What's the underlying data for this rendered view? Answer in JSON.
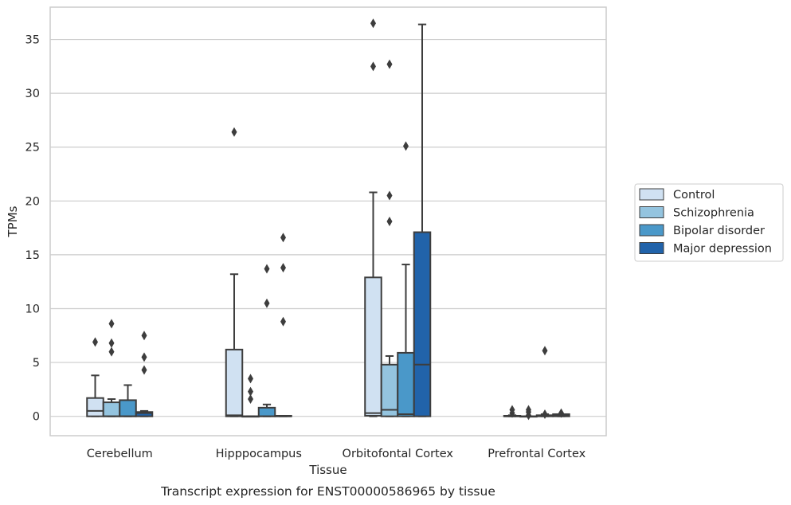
{
  "chart_data": {
    "type": "boxplot",
    "title": "",
    "caption": "Transcript expression for ENST00000586965 by tissue",
    "xlabel": "Tissue",
    "ylabel": "TPMs",
    "ylim": [
      -1.8,
      38
    ],
    "yticks": [
      0,
      5,
      10,
      15,
      20,
      25,
      30,
      35
    ],
    "grid": "horizontal",
    "legend_position": "right",
    "categories": [
      "Cerebellum",
      "Hipppocampus",
      "Orbitofontal Cortex",
      "Prefrontal Cortex"
    ],
    "series": [
      {
        "name": "Control",
        "color": "#d0e1f2",
        "boxes": [
          {
            "q1": 0,
            "median": 0.5,
            "q3": 1.7,
            "whisker_low": 0,
            "whisker_high": 3.8,
            "outliers": [
              6.9
            ]
          },
          {
            "q1": 0,
            "median": 0.1,
            "q3": 6.2,
            "whisker_low": 0,
            "whisker_high": 13.2,
            "outliers": [
              26.4
            ]
          },
          {
            "q1": 0.05,
            "median": 0.3,
            "q3": 12.9,
            "whisker_low": 0,
            "whisker_high": 20.8,
            "outliers": [
              32.5,
              36.5
            ]
          },
          {
            "q1": 0,
            "median": 0,
            "q3": 0.05,
            "whisker_low": 0,
            "whisker_high": 0.1,
            "outliers": [
              0.3,
              0.6
            ]
          }
        ]
      },
      {
        "name": "Schizophrenia",
        "color": "#94c4df",
        "boxes": [
          {
            "q1": 0,
            "median": 0,
            "q3": 1.3,
            "whisker_low": 0,
            "whisker_high": 1.6,
            "outliers": [
              6.0,
              6.8,
              8.6
            ]
          },
          {
            "q1": 0,
            "median": 0,
            "q3": 0,
            "whisker_low": 0,
            "whisker_high": 0,
            "outliers": [
              1.6,
              2.3,
              3.5
            ]
          },
          {
            "q1": 0,
            "median": 0.6,
            "q3": 4.8,
            "whisker_low": 0,
            "whisker_high": 5.6,
            "outliers": [
              18.1,
              20.5,
              32.7
            ]
          },
          {
            "q1": 0,
            "median": 0,
            "q3": 0,
            "whisker_low": 0,
            "whisker_high": 0,
            "outliers": [
              0.1,
              0.4,
              0.6
            ]
          }
        ]
      },
      {
        "name": "Bipolar disorder",
        "color": "#4a98c9",
        "boxes": [
          {
            "q1": 0,
            "median": 0,
            "q3": 1.5,
            "whisker_low": 0,
            "whisker_high": 2.9,
            "outliers": []
          },
          {
            "q1": 0,
            "median": 0,
            "q3": 0.8,
            "whisker_low": 0,
            "whisker_high": 1.1,
            "outliers": [
              10.5,
              13.7
            ]
          },
          {
            "q1": 0,
            "median": 0.2,
            "q3": 5.9,
            "whisker_low": 0,
            "whisker_high": 14.1,
            "outliers": [
              25.1
            ]
          },
          {
            "q1": 0,
            "median": 0.05,
            "q3": 0.1,
            "whisker_low": 0,
            "whisker_high": 0.2,
            "outliers": [
              0.2,
              6.1
            ]
          }
        ]
      },
      {
        "name": "Major depression",
        "color": "#2163aa",
        "boxes": [
          {
            "q1": 0,
            "median": 0.3,
            "q3": 0.4,
            "whisker_low": 0,
            "whisker_high": 0.5,
            "outliers": [
              4.3,
              5.5,
              7.5
            ]
          },
          {
            "q1": 0,
            "median": 0,
            "q3": 0.05,
            "whisker_low": 0,
            "whisker_high": 0.05,
            "outliers": [
              8.8,
              13.8,
              16.6
            ]
          },
          {
            "q1": 0,
            "median": 4.8,
            "q3": 17.1,
            "whisker_low": 0,
            "whisker_high": 36.4,
            "outliers": []
          },
          {
            "q1": 0,
            "median": 0.05,
            "q3": 0.2,
            "whisker_low": 0,
            "whisker_high": 0.2,
            "outliers": [
              0.3
            ]
          }
        ]
      }
    ]
  }
}
